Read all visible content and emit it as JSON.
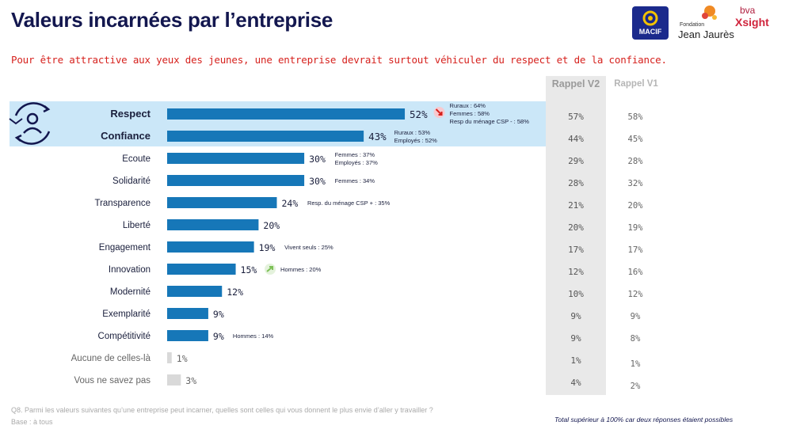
{
  "header": {
    "title": "Valeurs incarnées par l’entreprise",
    "subtitle": "Pour être attractive aux yeux des jeunes, une entreprise devrait surtout véhiculer du respect et de la confiance."
  },
  "logos": {
    "macif": "MACIF",
    "jj_small": "Fondation",
    "jj_big": "Jean Jaurès",
    "bva": "bva",
    "xsight": "Xsight"
  },
  "columns": {
    "v2_header": "Rappel V2",
    "v1_header": "Rappel V1"
  },
  "chart_data": {
    "type": "bar",
    "orientation": "horizontal",
    "categories": [
      "Respect",
      "Confiance",
      "Ecoute",
      "Solidarité",
      "Transparence",
      "Liberté",
      "Engagement",
      "Innovation",
      "Modernité",
      "Exemplarité",
      "Compétitivité",
      "Aucune de celles-là",
      "Vous ne savez pas"
    ],
    "values": [
      52,
      43,
      30,
      30,
      24,
      20,
      19,
      15,
      12,
      9,
      9,
      1,
      3
    ],
    "value_labels": [
      "52%",
      "43%",
      "30%",
      "30%",
      "24%",
      "20%",
      "19%",
      "15%",
      "12%",
      "9%",
      "9%",
      "1%",
      "3%"
    ],
    "bold_categories": [
      "Respect",
      "Confiance"
    ],
    "muted_categories": [
      "Aucune de celles-là",
      "Vous ne savez pas"
    ],
    "rappel_v2": [
      "57%",
      "44%",
      "29%",
      "28%",
      "21%",
      "20%",
      "17%",
      "12%",
      "10%",
      "9%",
      "9%",
      "1%",
      "4%"
    ],
    "rappel_v1": [
      "58%",
      "45%",
      "28%",
      "32%",
      "20%",
      "19%",
      "17%",
      "16%",
      "12%",
      "9%",
      "8%",
      "1%",
      "2%"
    ],
    "annotations": [
      [
        "Ruraux : 64%",
        "Femmes : 58%",
        "Resp du ménage CSP - : 58%"
      ],
      [
        "Ruraux : 53%",
        "Employés : 52%"
      ],
      [
        "Femmes : 37%",
        "Employés : 37%"
      ],
      [
        "Femmes : 34%"
      ],
      [
        "Resp. du ménage CSP + : 35%"
      ],
      [],
      [
        "Vivent seuls : 25%"
      ],
      [
        "Hommes : 20%"
      ],
      [],
      [],
      [
        "Hommes : 14%"
      ],
      [],
      []
    ],
    "colors": {
      "main_bar": "#1677b8",
      "muted_bar": "#d9d9d9",
      "highlight_bg": "#cbe7f8",
      "rappel_v2_bg": "#e9e9e9"
    }
  },
  "footer": {
    "question": "Q8. Parmi les valeurs suivantes qu’une entreprise peut incarner, quelles sont celles qui vous donnent le plus envie d’aller y travailler ?",
    "base": "Base : à tous",
    "note": "Total supérieur à 100% car deux réponses étaient possibles"
  }
}
